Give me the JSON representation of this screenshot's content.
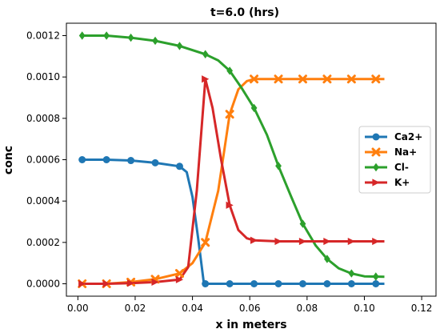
{
  "chart_data": {
    "type": "line",
    "title": "t=6.0 (hrs)",
    "xlabel": "x in meters",
    "ylabel": "conc",
    "xlim": [
      -0.004,
      0.125
    ],
    "ylim": [
      -6e-05,
      0.00126
    ],
    "xticks": [
      0.0,
      0.02,
      0.04,
      0.06,
      0.08,
      0.1,
      0.12
    ],
    "xtick_labels": [
      "0.00",
      "0.02",
      "0.04",
      "0.06",
      "0.08",
      "0.10",
      "0.12"
    ],
    "yticks": [
      0.0,
      0.0002,
      0.0004,
      0.0006,
      0.0008,
      0.001,
      0.0012
    ],
    "ytick_labels": [
      "0.0000",
      "0.0002",
      "0.0004",
      "0.0006",
      "0.0008",
      "0.0010",
      "0.0012"
    ],
    "grid": false,
    "legend_position": "center-right",
    "series": [
      {
        "name": "Ca2+",
        "color": "#1f77b4",
        "marker": "circle",
        "x": [
          0.0015,
          0.01,
          0.0185,
          0.027,
          0.0355,
          0.038,
          0.04,
          0.042,
          0.044,
          0.046,
          0.053,
          0.0615,
          0.07,
          0.0785,
          0.087,
          0.0955,
          0.107
        ],
        "y": [
          0.0006,
          0.0006,
          0.000596,
          0.000585,
          0.000568,
          0.00054,
          0.00042,
          0.00022,
          0.0,
          0.0,
          0.0,
          0.0,
          0.0,
          0.0,
          0.0,
          0.0,
          0.0
        ],
        "marker_x": [
          0.0015,
          0.01,
          0.0185,
          0.027,
          0.0355,
          0.0445,
          0.053,
          0.0615,
          0.07,
          0.0785,
          0.087,
          0.0955,
          0.104
        ]
      },
      {
        "name": "Na+",
        "color": "#ff7f0e",
        "marker": "x",
        "x": [
          0.0015,
          0.01,
          0.0185,
          0.027,
          0.0355,
          0.04,
          0.0445,
          0.049,
          0.053,
          0.056,
          0.059,
          0.0615,
          0.07,
          0.0785,
          0.087,
          0.0955,
          0.107
        ],
        "y": [
          0.0,
          0.0,
          8e-06,
          2.2e-05,
          5e-05,
          0.0001,
          0.0002,
          0.00045,
          0.00082,
          0.00094,
          0.00098,
          0.00099,
          0.00099,
          0.00099,
          0.00099,
          0.00099,
          0.00099
        ],
        "marker_x": [
          0.0015,
          0.01,
          0.0185,
          0.027,
          0.0355,
          0.0445,
          0.053,
          0.0615,
          0.07,
          0.0785,
          0.087,
          0.0955,
          0.104
        ]
      },
      {
        "name": "Cl-",
        "color": "#2ca02c",
        "marker": "diamond",
        "x": [
          0.0015,
          0.01,
          0.0185,
          0.027,
          0.0355,
          0.0445,
          0.049,
          0.053,
          0.057,
          0.0615,
          0.066,
          0.07,
          0.0745,
          0.0785,
          0.083,
          0.087,
          0.091,
          0.0955,
          0.1,
          0.107
        ],
        "y": [
          0.0012,
          0.0012,
          0.00119,
          0.001175,
          0.00115,
          0.00111,
          0.00108,
          0.00103,
          0.00095,
          0.00085,
          0.00072,
          0.00057,
          0.00042,
          0.00029,
          0.000185,
          0.00012,
          7.5e-05,
          5e-05,
          3.6e-05,
          3.4e-05
        ],
        "marker_x": [
          0.0015,
          0.01,
          0.0185,
          0.027,
          0.0355,
          0.0445,
          0.053,
          0.0615,
          0.07,
          0.0785,
          0.087,
          0.0955,
          0.104
        ]
      },
      {
        "name": "K+",
        "color": "#d62728",
        "marker": "triangle-right",
        "x": [
          0.0015,
          0.01,
          0.0185,
          0.027,
          0.0355,
          0.0385,
          0.0415,
          0.0445,
          0.047,
          0.05,
          0.053,
          0.056,
          0.059,
          0.0615,
          0.07,
          0.0785,
          0.087,
          0.0955,
          0.107
        ],
        "y": [
          0.0,
          0.0,
          3e-06,
          8e-06,
          2e-05,
          8e-05,
          0.00045,
          0.00099,
          0.00085,
          0.0006,
          0.00038,
          0.00026,
          0.00022,
          0.00021,
          0.000205,
          0.000205,
          0.000205,
          0.000205,
          0.000205
        ],
        "marker_x": [
          0.0015,
          0.01,
          0.0185,
          0.027,
          0.0355,
          0.0445,
          0.053,
          0.0615,
          0.07,
          0.0785,
          0.087,
          0.0955,
          0.104
        ]
      }
    ]
  }
}
